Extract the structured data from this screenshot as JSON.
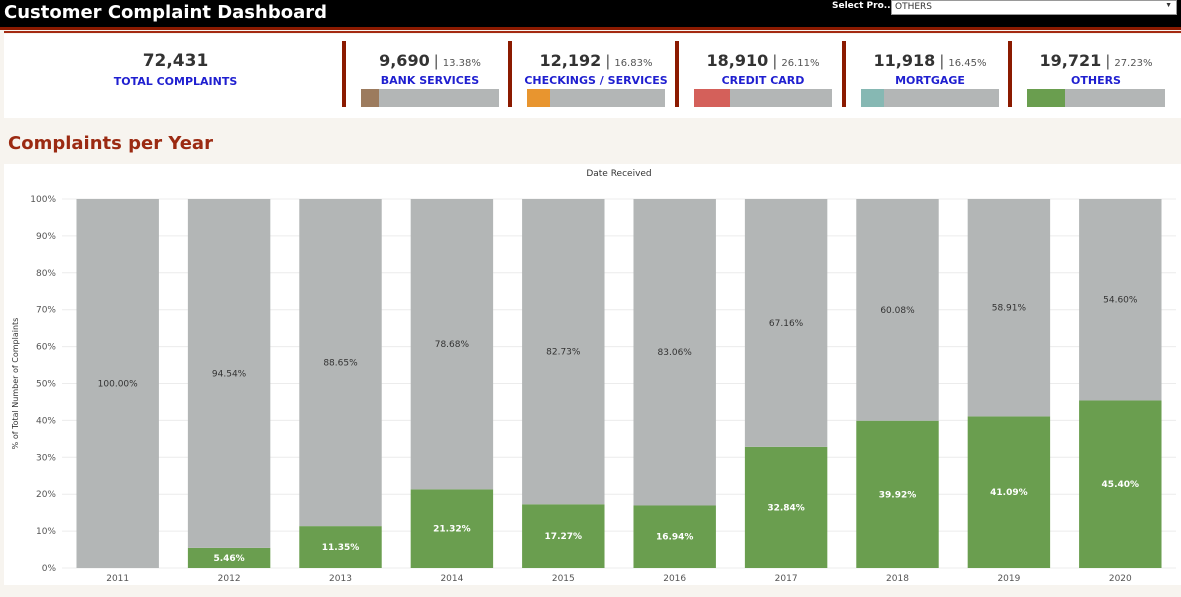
{
  "header": {
    "title": "Customer Complaint Dashboard",
    "select_label": "Select Pro...",
    "select_value": "OTHERS"
  },
  "kpis": {
    "total": {
      "value": "72,431",
      "label": "TOTAL COMPLAINTS"
    },
    "products": [
      {
        "value": "9,690",
        "pct": "13.38%",
        "label": "BANK SERVICES",
        "fraction": 0.1338,
        "color": "#9c7b5e"
      },
      {
        "value": "12,192",
        "pct": "16.83%",
        "label": "CHECKINGS / SERVICES",
        "fraction": 0.1683,
        "color": "#e8952f"
      },
      {
        "value": "18,910",
        "pct": "26.11%",
        "label": "CREDIT CARD",
        "fraction": 0.2611,
        "color": "#d4605a"
      },
      {
        "value": "11,918",
        "pct": "16.45%",
        "label": "MORTGAGE",
        "fraction": 0.1645,
        "color": "#86b8b3"
      },
      {
        "value": "19,721",
        "pct": "27.23%",
        "label": "OTHERS",
        "fraction": 0.2723,
        "color": "#6a9e4f"
      }
    ]
  },
  "section": {
    "title": "Complaints per Year"
  },
  "chart_data": {
    "type": "bar",
    "stacked": true,
    "title": "Date Received",
    "ylabel": "% of Total Number of Complaints",
    "xlabel": "",
    "ylim": [
      0,
      100
    ],
    "yticks": [
      "0%",
      "10%",
      "20%",
      "30%",
      "40%",
      "50%",
      "60%",
      "70%",
      "80%",
      "90%",
      "100%"
    ],
    "categories": [
      "2011",
      "2012",
      "2013",
      "2014",
      "2015",
      "2016",
      "2017",
      "2018",
      "2019",
      "2020"
    ],
    "series": [
      {
        "color": "#6a9e4f",
        "values": [
          0,
          5.46,
          11.35,
          21.32,
          17.27,
          16.94,
          32.84,
          39.92,
          41.09,
          45.4
        ],
        "labels": [
          "",
          "5.46%",
          "11.35%",
          "21.32%",
          "17.27%",
          "16.94%",
          "32.84%",
          "39.92%",
          "41.09%",
          "45.40%"
        ]
      },
      {
        "color": "#b3b6b6",
        "values": [
          100,
          94.54,
          88.65,
          78.68,
          82.73,
          83.06,
          67.16,
          60.08,
          58.91,
          54.6
        ],
        "labels": [
          "100.00%",
          "94.54%",
          "88.65%",
          "78.68%",
          "82.73%",
          "83.06%",
          "67.16%",
          "60.08%",
          "58.91%",
          "54.60%"
        ]
      }
    ],
    "grid": true
  }
}
